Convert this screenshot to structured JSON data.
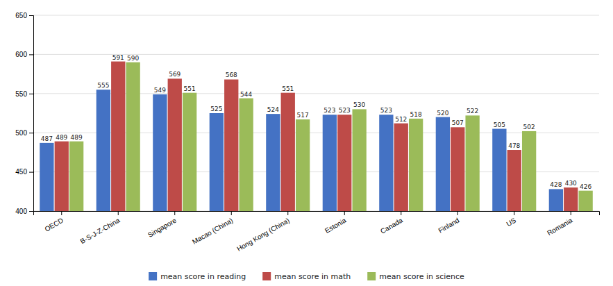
{
  "chart_data": {
    "type": "bar",
    "categories": [
      "OECD",
      "B-S-J-Z-China",
      "Singapore",
      "Macao (China)",
      "Hong Kong (China)",
      "Estonia",
      "Canada",
      "Finland",
      "US",
      "Romania"
    ],
    "series": [
      {
        "name": "mean score in reading",
        "color": "#4472C4",
        "values": [
          487,
          555,
          549,
          525,
          524,
          523,
          523,
          520,
          505,
          428
        ]
      },
      {
        "name": "mean score in math",
        "color": "#BE4B48",
        "values": [
          489,
          591,
          569,
          568,
          551,
          523,
          512,
          507,
          478,
          430
        ]
      },
      {
        "name": "mean score in science",
        "color": "#9BBB59",
        "values": [
          489,
          590,
          551,
          544,
          517,
          530,
          518,
          522,
          502,
          426
        ]
      }
    ],
    "ylim": [
      400,
      650
    ],
    "yticks": [
      400,
      450,
      500,
      550,
      600,
      650
    ],
    "grid": true,
    "data_labels": true,
    "legend": "bottom"
  }
}
